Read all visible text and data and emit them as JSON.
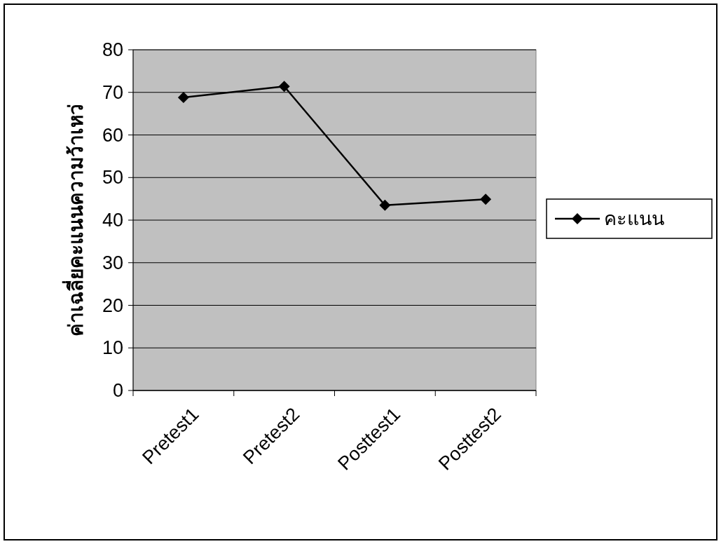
{
  "chart_data": {
    "type": "line",
    "ylabel": "ค่าเฉลี่ยคะแนนความว้าเหว่",
    "categories": [
      "Pretest1",
      "Pretest2",
      "Posttest1",
      "Posttest2"
    ],
    "series": [
      {
        "name": "คะแนน",
        "color": "#000000",
        "values": [
          68.8,
          71.4,
          43.5,
          44.9
        ]
      }
    ],
    "ylim": [
      0,
      80
    ],
    "yticks": [
      0,
      10,
      20,
      30,
      40,
      50,
      60,
      70,
      80
    ],
    "grid": "y",
    "legend": "right",
    "marker": "diamond",
    "line_style": "solid"
  }
}
